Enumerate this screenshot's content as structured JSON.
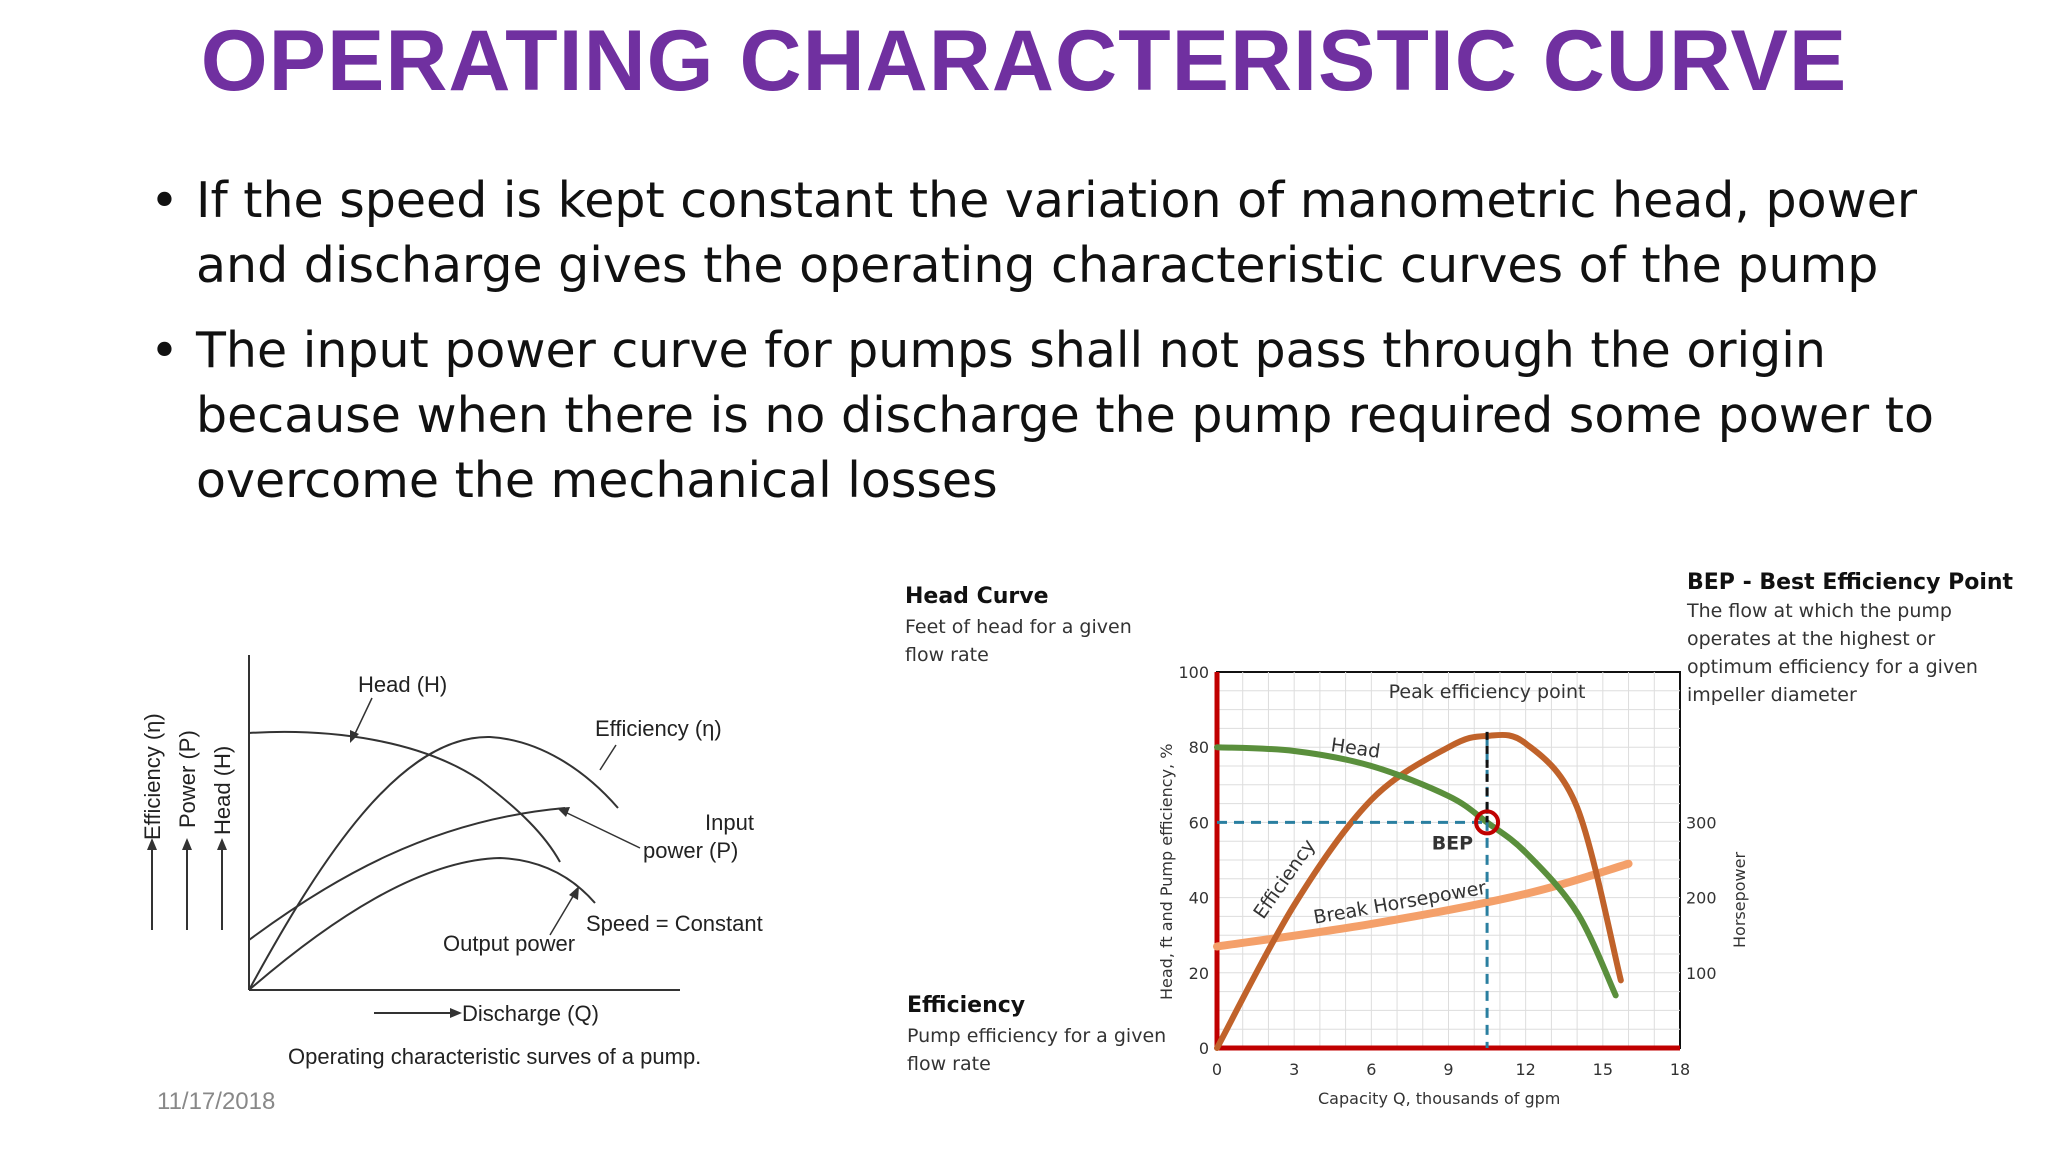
{
  "slide": {
    "title": "OPERATING CHARACTERISTIC CURVE",
    "bullets": [
      "If the speed is kept constant the variation of manometric head, power and discharge gives the operating characteristic curves of the pump",
      "The input power  curve for pumps shall not pass through the origin because when there is no discharge the pump required some power to overcome the mechanical losses"
    ],
    "bullet_glyph": "•",
    "date": "11/17/2018"
  },
  "left_figure": {
    "y_labels": [
      "Efficiency (η)",
      "Power (P)",
      "Head (H)"
    ],
    "head_label": "Head (H)",
    "efficiency_label": "Efficiency (η)",
    "input_power_label_1": "Input",
    "input_power_label_2": "power (P)",
    "speed_label": "Speed = Constant",
    "output_power_label": "Output power",
    "x_label": "Discharge (Q)",
    "caption": "Operating characteristic surves of a pump."
  },
  "right_figure": {
    "head_curve_title": "Head Curve",
    "head_curve_desc_1": "Feet of head for a given",
    "head_curve_desc_2": "flow rate",
    "efficiency_title": "Efficiency",
    "efficiency_desc_1": "Pump efficiency for a given",
    "efficiency_desc_2": "flow rate",
    "bep_title": "BEP - Best Efficiency Point",
    "bep_desc": [
      "The flow at which the pump",
      "operates at the highest or",
      "optimum efficiency for a given",
      "impeller diameter"
    ],
    "peak_label": "Peak efficiency point",
    "bep_marker_label": "BEP",
    "head_label": "Head",
    "efficiency_label": "Efficiency",
    "horsepower_label": "Break Horsepower",
    "y_left_label": "Head, ft  and  Pump efficiency, %",
    "y_right_label": "Horsepower",
    "x_label": "Capacity Q, thousands of gpm",
    "x_ticks": [
      "0",
      "3",
      "6",
      "9",
      "12",
      "15",
      "18"
    ],
    "y_left_ticks": [
      "0",
      "20",
      "40",
      "60",
      "80",
      "100"
    ],
    "y_right_ticks": [
      "100",
      "200",
      "300"
    ],
    "colors": {
      "head": "#5a8f3c",
      "efficiency": "#c0622a",
      "horsepower": "#f4a06a",
      "axis": "#c00000",
      "dashed": "#2a7fa0"
    }
  },
  "chart_data": {
    "type": "line",
    "xlabel": "Capacity Q, thousands of gpm",
    "ylabel": "Head, ft  and  Pump efficiency, %",
    "y2label": "Horsepower",
    "xlim": [
      0,
      18
    ],
    "ylim": [
      0,
      100
    ],
    "series": [
      {
        "name": "Head",
        "x": [
          0,
          3,
          6,
          9,
          10.5,
          12,
          14,
          15.5
        ],
        "y": [
          80,
          79,
          75,
          67,
          60,
          52,
          36,
          14
        ]
      },
      {
        "name": "Efficiency",
        "x": [
          0,
          3,
          6,
          9,
          10.5,
          12,
          14,
          15.7
        ],
        "y": [
          0,
          38,
          66,
          80,
          83,
          81,
          64,
          18
        ]
      },
      {
        "name": "Break Horsepower",
        "x": [
          0,
          6,
          12,
          16
        ],
        "y": [
          27,
          33,
          41,
          49
        ]
      }
    ],
    "annotations": {
      "Peak efficiency point": [
        10.5,
        83
      ],
      "BEP": [
        10.5,
        60
      ]
    }
  }
}
